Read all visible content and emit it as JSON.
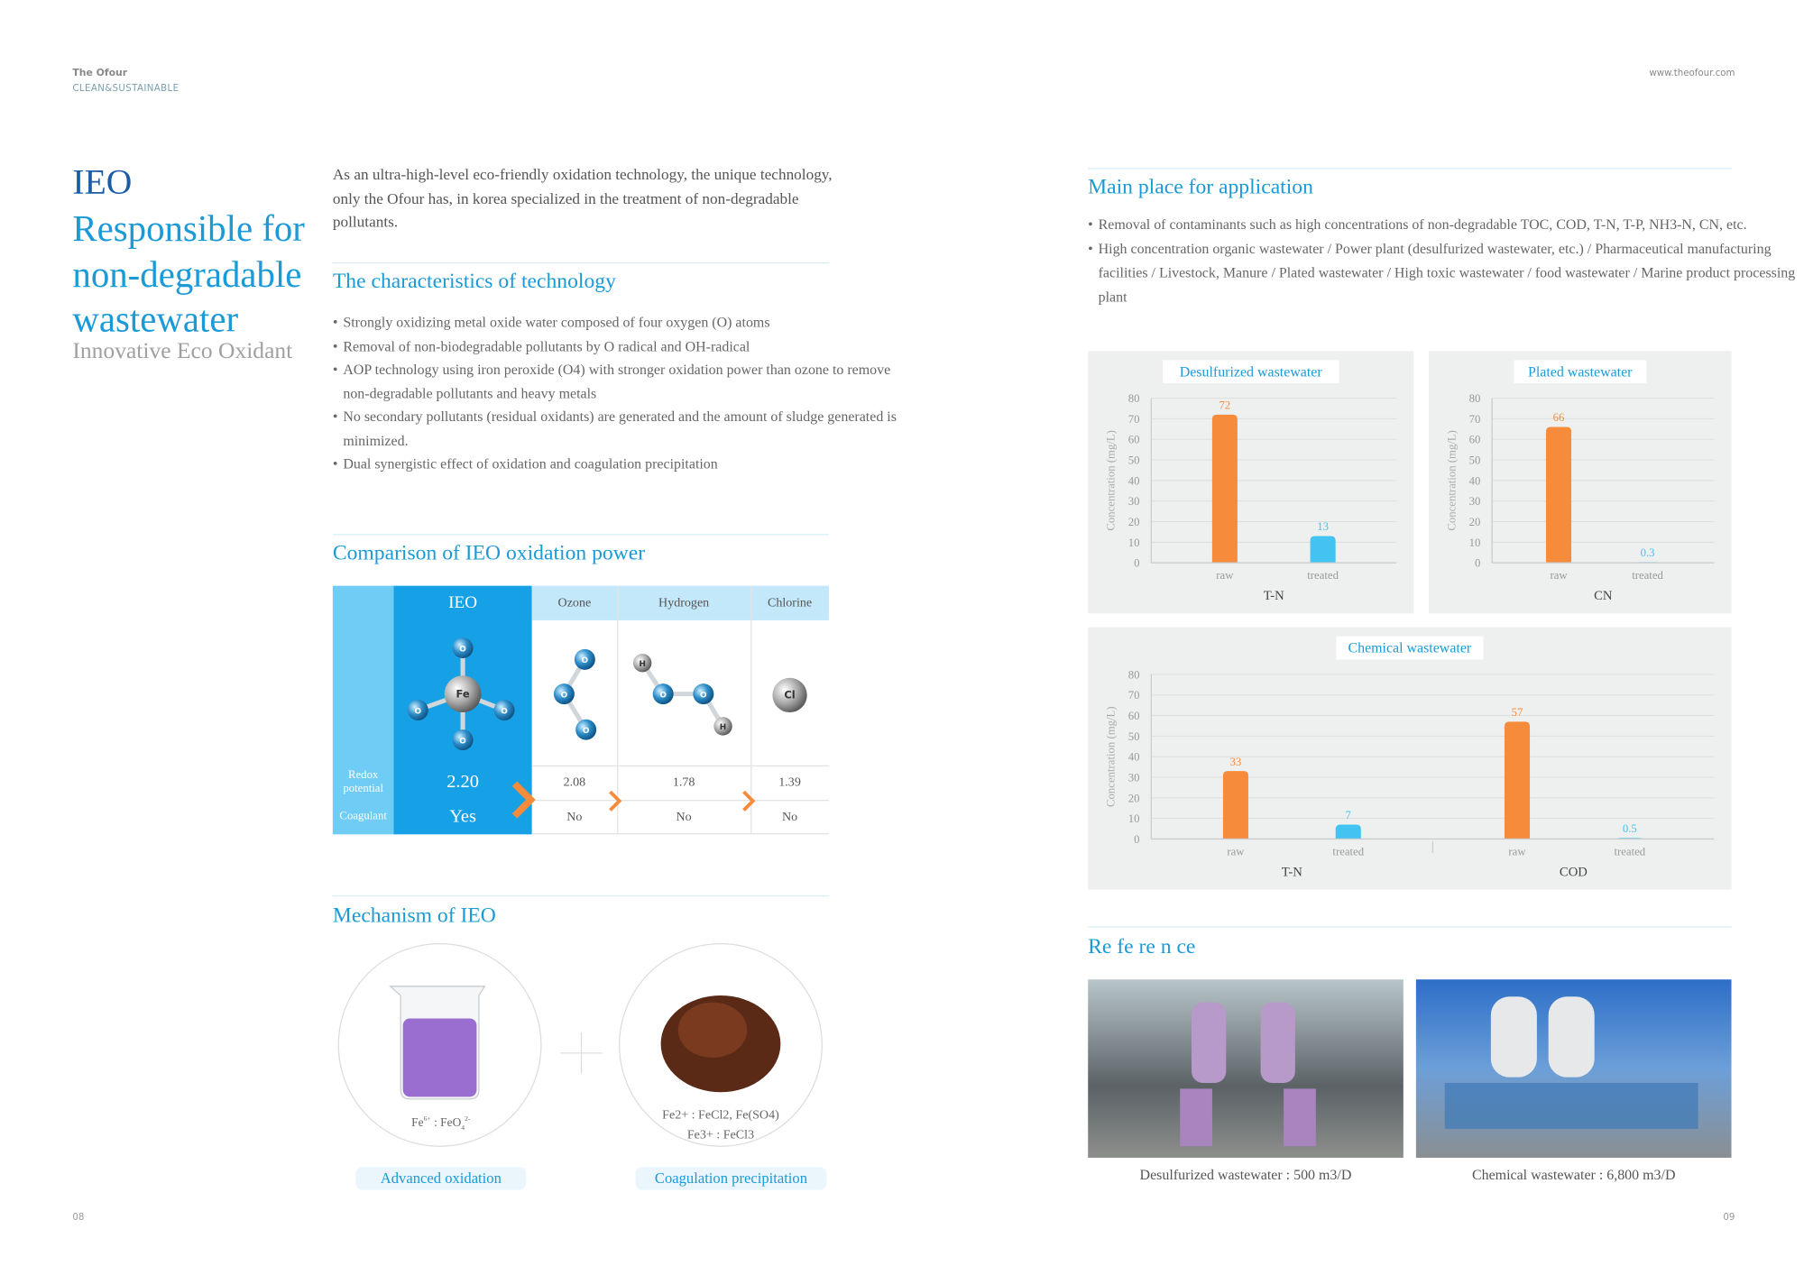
{
  "header": {
    "brand": "The Ofour",
    "tagline": "CLEAN&SUSTAINABLE",
    "url": "www.theofour.com"
  },
  "left": {
    "title": "IEO",
    "subtitle": "Responsible for non-degradable wastewater",
    "caption": "Innovative Eco Oxidant"
  },
  "intro": "As an ultra-high-level eco-friendly oxidation technology, the unique technology, only the Ofour has, in korea specialized in the treatment of non-degradable pollutants.",
  "characteristics": {
    "heading": "The characteristics of technology",
    "items": [
      "Strongly oxidizing metal oxide water composed of four oxygen (O) atoms",
      "Removal of non-biodegradable pollutants by O radical and OH-radical",
      "AOP technology using iron peroxide (O4) with stronger oxidation power than ozone to remove non-degradable pollutants and heavy metals",
      "No secondary pollutants (residual oxidants) are generated and the amount of sludge generated is minimized.",
      "Dual synergistic effect of oxidation and coagulation precipitation"
    ]
  },
  "comparison": {
    "heading": "Comparison of IEO oxidation power",
    "columns": [
      "IEO",
      "Ozone",
      "Hydrogen",
      "Chlorine"
    ],
    "molecules": [
      {
        "atoms": [
          "Fe",
          "O",
          "O",
          "O",
          "O"
        ]
      },
      {
        "atoms": [
          "O",
          "O",
          "O"
        ]
      },
      {
        "atoms": [
          "H",
          "O",
          "O",
          "H"
        ]
      },
      {
        "atoms": [
          "Cl"
        ]
      }
    ],
    "rows": [
      {
        "label": "Redox potential",
        "cells": [
          "2.20",
          "2.08",
          "1.78",
          "1.39"
        ]
      },
      {
        "label": "Coagulant",
        "cells": [
          "Yes",
          "No",
          "No",
          "No"
        ]
      }
    ]
  },
  "mechanism": {
    "heading": "Mechanism of IEO",
    "items": [
      {
        "formula": {
          "element": "Fe",
          "charge": "6+",
          "separator": " : ",
          "compound": "FeO",
          "subscript": "4",
          "ion_charge": "2-"
        },
        "label": "Advanced oxidation"
      },
      {
        "formula_lines": [
          "Fe2+ : FeCl2, Fe(SO4)",
          "Fe3+ : FeCl3"
        ],
        "label": "Coagulation precipitation"
      }
    ]
  },
  "application": {
    "heading": "Main place for application",
    "items": [
      "Removal of contaminants such as high concentrations of non-degradable TOC, COD, T-N, T-P, NH3-N, CN, etc.",
      "High concentration organic wastewater / Power plant (desulfurized wastewater, etc.) / Pharmaceutical manufacturing facilities / Livestock, Manure / Plated wastewater / High toxic wastewater / food wastewater / Marine product processing plant"
    ]
  },
  "charts": [
    {
      "type": "bar",
      "title": "Desulfurized wastewater",
      "y_label": "Concentration (mg/L)",
      "ylim": [
        0,
        80
      ],
      "yticks": [
        0,
        10,
        20,
        30,
        40,
        50,
        60,
        70,
        80
      ],
      "colors": [
        "#f68b3c",
        "#43c3f1"
      ],
      "groups": [
        {
          "label": "T-N",
          "categories": [
            "raw",
            "treated"
          ],
          "values": [
            72,
            13
          ]
        }
      ]
    },
    {
      "type": "bar",
      "title": "Plated wastewater",
      "y_label": "Concentration (mg/L)",
      "ylim": [
        0,
        80
      ],
      "yticks": [
        0,
        10,
        20,
        30,
        40,
        50,
        60,
        70,
        80
      ],
      "colors": [
        "#f68b3c",
        "#43c3f1"
      ],
      "groups": [
        {
          "label": "CN",
          "categories": [
            "raw",
            "treated"
          ],
          "values": [
            66,
            0.3
          ]
        }
      ]
    },
    {
      "type": "bar",
      "title": "Chemical wastewater",
      "y_label": "Concentration (mg/L)",
      "ylim": [
        0,
        80
      ],
      "yticks": [
        0,
        10,
        20,
        30,
        40,
        50,
        60,
        70,
        80
      ],
      "colors": [
        "#f68b3c",
        "#43c3f1"
      ],
      "groups": [
        {
          "label": "T-N",
          "categories": [
            "raw",
            "treated"
          ],
          "values": [
            33,
            7
          ]
        },
        {
          "label": "COD",
          "categories": [
            "raw",
            "treated"
          ],
          "values": [
            57,
            0.5
          ]
        }
      ]
    }
  ],
  "reference": {
    "heading": "Re fe re n ce",
    "photos": [
      {
        "caption": "Desulfurized wastewater : 500 m3/D"
      },
      {
        "caption": "Chemical wastewater : 6,800 m3/D"
      }
    ]
  },
  "page_numbers": [
    "08",
    "09"
  ]
}
